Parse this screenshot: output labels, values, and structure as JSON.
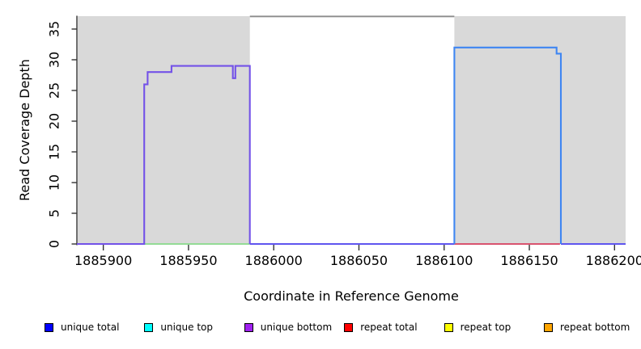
{
  "figure": {
    "background": "#ffffff",
    "plot_background_shade": "#d9d9d9"
  },
  "chart_data": {
    "type": "line",
    "title": "",
    "xlabel": "Coordinate in Reference Genome",
    "ylabel": "Read Coverage Depth",
    "xlim": [
      1885884.5,
      1886206.5
    ],
    "ylim": [
      0,
      37.1
    ],
    "x_ticks": [
      1885900,
      1885950,
      1886000,
      1886050,
      1886100,
      1886150,
      1886200
    ],
    "y_ticks": [
      0,
      5,
      10,
      15,
      20,
      25,
      30,
      35
    ],
    "grid": "off",
    "shaded_regions": [
      {
        "x0": 1885885,
        "x1": 1885986
      },
      {
        "x0": 1886106,
        "x1": 1886206.5
      }
    ],
    "top_border_segment": {
      "x0": 1885986,
      "x1": 1886106,
      "color": "#8c8c8c"
    },
    "series": [
      {
        "name": "zero line green (left region)",
        "color": "#93db96",
        "points": [
          [
            1885924,
            0
          ],
          [
            1885986,
            0
          ]
        ]
      },
      {
        "name": "zero line red (right region)",
        "color": "#d9536f",
        "points": [
          [
            1886106,
            0
          ],
          [
            1886168,
            0
          ]
        ]
      },
      {
        "name": "zero line indigo (middle)",
        "color": "#5f55ef",
        "points": [
          [
            1885986,
            0
          ],
          [
            1886106,
            0
          ]
        ]
      },
      {
        "name": "zero line indigo (right edge)",
        "color": "#5f55ef",
        "points": [
          [
            1886168.5,
            0
          ],
          [
            1886206.5,
            0
          ]
        ]
      },
      {
        "name": "unique bottom coverage block",
        "color": "#7352e8",
        "points": [
          [
            1885884.5,
            0
          ],
          [
            1885924,
            0
          ],
          [
            1885924,
            26
          ],
          [
            1885926,
            26
          ],
          [
            1885926,
            28
          ],
          [
            1885940,
            28
          ],
          [
            1885940,
            29
          ],
          [
            1885976,
            29
          ],
          [
            1885976,
            27
          ],
          [
            1885977.5,
            27
          ],
          [
            1885977.5,
            29
          ],
          [
            1885986,
            29
          ],
          [
            1885986,
            0
          ]
        ]
      },
      {
        "name": "unique total coverage block",
        "color": "#3f86f2",
        "points": [
          [
            1886106,
            0
          ],
          [
            1886106,
            32
          ],
          [
            1886166,
            32
          ],
          [
            1886166,
            31
          ],
          [
            1886168.5,
            31
          ],
          [
            1886168.5,
            0
          ]
        ]
      }
    ],
    "legend_position": "bottom",
    "legend": [
      {
        "label": "unique total",
        "color": "#0000ff"
      },
      {
        "label": "unique top",
        "color": "#00ffff"
      },
      {
        "label": "unique bottom",
        "color": "#a020f0"
      },
      {
        "label": "repeat total",
        "color": "#ff0000"
      },
      {
        "label": "repeat top",
        "color": "#ffff00"
      },
      {
        "label": "repeat bottom",
        "color": "#ffa500"
      }
    ],
    "axis_color": "#333333"
  }
}
